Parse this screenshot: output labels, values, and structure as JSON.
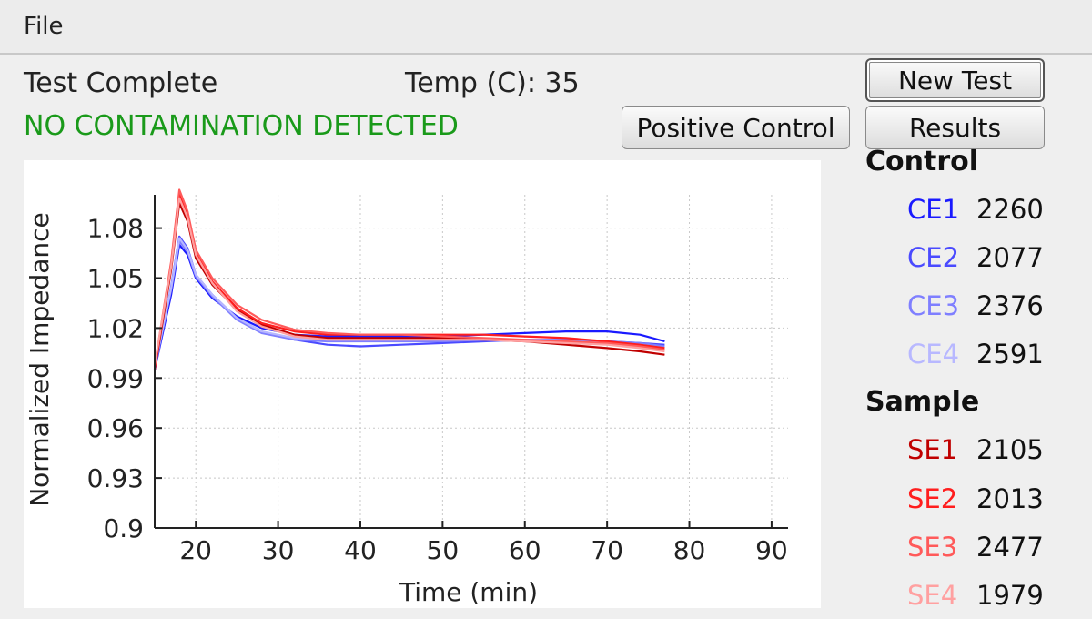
{
  "menu": {
    "file_label": "File"
  },
  "status": {
    "test_state": "Test Complete",
    "temperature": "Temp (C): 35",
    "verdict": "NO CONTAMINATION DETECTED",
    "verdict_color": "#1a9a1a"
  },
  "buttons": {
    "new_test": "New Test",
    "results": "Results",
    "positive_control": "Positive Control"
  },
  "legend": {
    "control_title": "Control",
    "sample_title": "Sample",
    "control": [
      {
        "name": "CE1",
        "value": "2260",
        "color": "#1a1aff"
      },
      {
        "name": "CE2",
        "value": "2077",
        "color": "#4a4aff"
      },
      {
        "name": "CE3",
        "value": "2376",
        "color": "#7f7fff"
      },
      {
        "name": "CE4",
        "value": "2591",
        "color": "#b8b8ff"
      }
    ],
    "sample": [
      {
        "name": "SE1",
        "value": "2105",
        "color": "#c00000"
      },
      {
        "name": "SE2",
        "value": "2013",
        "color": "#ff1e1e"
      },
      {
        "name": "SE3",
        "value": "2477",
        "color": "#ff5a5a"
      },
      {
        "name": "SE4",
        "value": "1979",
        "color": "#ffa0a0"
      }
    ]
  },
  "chart_data": {
    "type": "line",
    "xlabel": "Time (min)",
    "ylabel": "Normalized Impedance",
    "xlim": [
      15,
      92
    ],
    "ylim": [
      0.9,
      1.1
    ],
    "xticks": [
      20,
      30,
      40,
      50,
      60,
      70,
      80,
      90
    ],
    "yticks": [
      0.9,
      0.93,
      0.96,
      0.99,
      1.02,
      1.05,
      1.08
    ],
    "ytick_labels": [
      "0.9",
      "0.93",
      "0.96",
      "0.99",
      "1.02",
      "1.05",
      "1.08"
    ],
    "grid": true,
    "series": [
      {
        "name": "CE1",
        "color": "#1a1aff",
        "x": [
          15,
          17,
          18,
          19,
          20,
          22,
          25,
          28,
          32,
          36,
          40,
          45,
          50,
          55,
          60,
          65,
          70,
          74,
          77
        ],
        "y": [
          0.995,
          1.04,
          1.07,
          1.064,
          1.05,
          1.038,
          1.027,
          1.02,
          1.016,
          1.015,
          1.015,
          1.015,
          1.015,
          1.016,
          1.017,
          1.018,
          1.018,
          1.016,
          1.012
        ]
      },
      {
        "name": "CE2",
        "color": "#4a4aff",
        "x": [
          15,
          17,
          18,
          19,
          20,
          22,
          25,
          28,
          32,
          36,
          40,
          45,
          50,
          55,
          60,
          65,
          70,
          74,
          77
        ],
        "y": [
          0.995,
          1.045,
          1.075,
          1.068,
          1.052,
          1.04,
          1.026,
          1.018,
          1.013,
          1.01,
          1.009,
          1.01,
          1.011,
          1.012,
          1.013,
          1.012,
          1.012,
          1.011,
          1.01
        ]
      },
      {
        "name": "CE3",
        "color": "#7f7fff",
        "x": [
          15,
          17,
          18,
          19,
          20,
          22,
          25,
          28,
          32,
          36,
          40,
          45,
          50,
          55,
          60,
          65,
          70,
          74,
          77
        ],
        "y": [
          0.996,
          1.043,
          1.072,
          1.066,
          1.051,
          1.039,
          1.025,
          1.017,
          1.013,
          1.012,
          1.012,
          1.012,
          1.012,
          1.013,
          1.013,
          1.013,
          1.012,
          1.011,
          1.009
        ]
      },
      {
        "name": "CE4",
        "color": "#b8b8ff",
        "x": [
          15,
          17,
          18,
          19,
          20,
          22,
          25,
          28,
          32,
          36,
          40,
          45,
          50,
          55,
          60,
          65,
          70,
          74,
          77
        ],
        "y": [
          0.997,
          1.044,
          1.074,
          1.067,
          1.052,
          1.04,
          1.026,
          1.018,
          1.014,
          1.013,
          1.013,
          1.013,
          1.013,
          1.013,
          1.013,
          1.012,
          1.011,
          1.01,
          1.008
        ]
      },
      {
        "name": "SE1",
        "color": "#c00000",
        "x": [
          15,
          17,
          18,
          19,
          20,
          22,
          25,
          28,
          32,
          36,
          40,
          45,
          50,
          55,
          60,
          65,
          70,
          74,
          77
        ],
        "y": [
          0.995,
          1.055,
          1.095,
          1.084,
          1.062,
          1.046,
          1.031,
          1.022,
          1.016,
          1.014,
          1.014,
          1.014,
          1.014,
          1.013,
          1.012,
          1.01,
          1.008,
          1.006,
          1.004
        ]
      },
      {
        "name": "SE2",
        "color": "#ff1e1e",
        "x": [
          15,
          17,
          18,
          19,
          20,
          22,
          25,
          28,
          32,
          36,
          40,
          45,
          50,
          55,
          60,
          65,
          70,
          74,
          77
        ],
        "y": [
          0.996,
          1.058,
          1.1,
          1.088,
          1.065,
          1.048,
          1.032,
          1.023,
          1.018,
          1.016,
          1.016,
          1.016,
          1.016,
          1.016,
          1.015,
          1.014,
          1.012,
          1.01,
          1.008
        ]
      },
      {
        "name": "SE3",
        "color": "#ff5a5a",
        "x": [
          15,
          17,
          18,
          19,
          20,
          22,
          25,
          28,
          32,
          36,
          40,
          45,
          50,
          55,
          60,
          65,
          70,
          74,
          77
        ],
        "y": [
          0.997,
          1.06,
          1.103,
          1.09,
          1.067,
          1.05,
          1.034,
          1.025,
          1.019,
          1.017,
          1.016,
          1.016,
          1.015,
          1.014,
          1.013,
          1.012,
          1.011,
          1.009,
          1.007
        ]
      },
      {
        "name": "SE4",
        "color": "#ffa0a0",
        "x": [
          15,
          17,
          18,
          19,
          20,
          22,
          25,
          28,
          32,
          36,
          40,
          45,
          50,
          55,
          60,
          65,
          70,
          74,
          77
        ],
        "y": [
          0.998,
          1.057,
          1.098,
          1.086,
          1.064,
          1.047,
          1.03,
          1.021,
          1.015,
          1.013,
          1.013,
          1.013,
          1.013,
          1.013,
          1.012,
          1.011,
          1.01,
          1.008,
          1.006
        ]
      }
    ]
  }
}
